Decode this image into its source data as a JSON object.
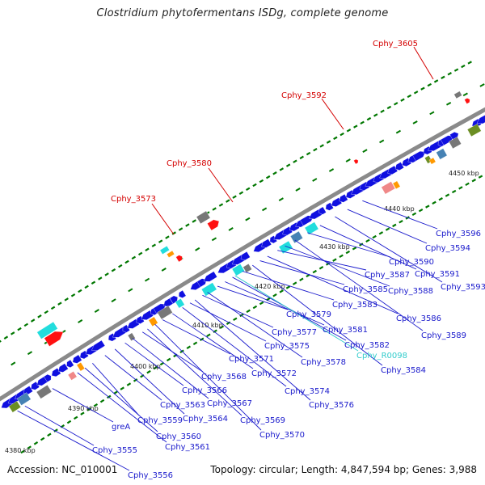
{
  "title": "Clostridium phytofermentans ISDg, complete genome",
  "footer": {
    "accession": "Accession: NC_010001",
    "topology": "Topology: circular; Length: 4,847,594 bp; Genes: 3,988"
  },
  "scale_labels": [
    "4380 kbp",
    "4390 kbp",
    "4400 kbp",
    "4410 kbp",
    "4420 kbp",
    "4430 kbp",
    "4440 kbp",
    "4450 kbp"
  ],
  "outer_labels": [
    "Cphy_3573",
    "Cphy_3580",
    "Cphy_3592",
    "Cphy_3605"
  ],
  "inner_labels": [
    "greA",
    "Cphy_3555",
    "Cphy_3556",
    "Cphy_3559",
    "Cphy_3560",
    "Cphy_3561",
    "Cphy_3563",
    "Cphy_3564",
    "Cphy_3566",
    "Cphy_3567",
    "Cphy_3568",
    "Cphy_3569",
    "Cphy_3570",
    "Cphy_3571",
    "Cphy_3572",
    "Cphy_3574",
    "Cphy_3575",
    "Cphy_3576",
    "Cphy_3577",
    "Cphy_3578",
    "Cphy_3579",
    "Cphy_3581",
    "Cphy_3582",
    "Cphy_R0098",
    "Cphy_3583",
    "Cphy_3584",
    "Cphy_3585",
    "Cphy_3586",
    "Cphy_3587",
    "Cphy_3588",
    "Cphy_3589",
    "Cphy_3590",
    "Cphy_3591",
    "Cphy_3593",
    "Cphy_3594",
    "Cphy_3596"
  ],
  "colors": {
    "outer_label": "#d40000",
    "inner_label": "#1a1acc",
    "rna_label": "#33cccc",
    "backbone": "#8a8a8a",
    "gene_blue": "#1010e0",
    "gene_cyan": "#22dddd",
    "gene_red": "#ff1010",
    "gene_gray": "#777777",
    "gene_pink": "#f08888",
    "gene_orange": "#ff9900",
    "gene_olive": "#6b8e23",
    "gene_steel": "#4682b4",
    "tick_green": "#007700"
  }
}
